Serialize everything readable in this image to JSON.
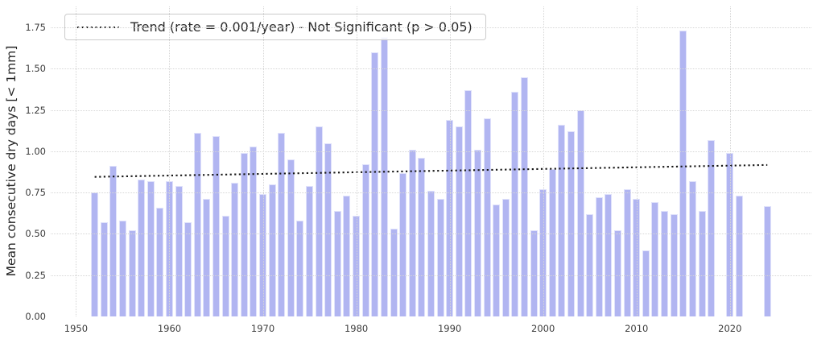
{
  "chart_data": {
    "type": "bar",
    "title": "",
    "xlabel": "",
    "ylabel": "Mean consecutive dry days [< 1mm]",
    "ylim": [
      0,
      1.82
    ],
    "yticks": [
      0,
      0.25,
      0.5,
      0.75,
      1.0,
      1.25,
      1.5,
      1.75
    ],
    "xticks": [
      1950,
      1960,
      1970,
      1980,
      1990,
      2000,
      2010,
      2020
    ],
    "grid": true,
    "legend_position": "upper-left",
    "years": [
      1952,
      1953,
      1954,
      1955,
      1956,
      1957,
      1958,
      1959,
      1960,
      1961,
      1962,
      1963,
      1964,
      1965,
      1966,
      1967,
      1968,
      1969,
      1970,
      1971,
      1972,
      1973,
      1974,
      1975,
      1976,
      1977,
      1978,
      1979,
      1980,
      1981,
      1982,
      1983,
      1984,
      1985,
      1986,
      1987,
      1988,
      1989,
      1990,
      1991,
      1992,
      1993,
      1994,
      1995,
      1996,
      1997,
      1998,
      1999,
      2000,
      2001,
      2002,
      2003,
      2004,
      2005,
      2006,
      2007,
      2008,
      2009,
      2010,
      2011,
      2012,
      2013,
      2014,
      2015,
      2016,
      2017,
      2018,
      2019,
      2020,
      2021,
      2022,
      2023,
      2024
    ],
    "values": [
      0.75,
      0.57,
      0.91,
      0.58,
      0.52,
      0.83,
      0.82,
      0.66,
      0.82,
      0.79,
      0.57,
      1.11,
      0.71,
      1.09,
      0.61,
      0.81,
      0.99,
      1.03,
      0.74,
      0.8,
      1.11,
      0.95,
      0.58,
      0.79,
      1.15,
      1.05,
      0.64,
      0.73,
      0.61,
      0.92,
      1.6,
      1.69,
      0.53,
      0.87,
      1.01,
      0.96,
      0.76,
      0.71,
      1.19,
      1.15,
      1.37,
      1.01,
      1.2,
      0.68,
      0.71,
      1.36,
      1.45,
      0.52,
      0.77,
      0.89,
      1.16,
      1.12,
      1.25,
      0.62,
      0.72,
      0.74,
      0.52,
      0.77,
      0.71,
      0.4,
      0.69,
      0.64,
      0.62,
      1.73,
      0.82,
      0.64,
      1.07,
      null,
      0.99,
      0.73,
      null,
      null,
      0.67
    ],
    "trend": {
      "label": "Trend (rate = 0.001/year) - Not Significant (p > 0.05)",
      "rate_per_year": 0.001,
      "significant": false,
      "p_text": "p > 0.05",
      "start": {
        "year": 1952,
        "value": 0.845
      },
      "end": {
        "year": 2024,
        "value": 0.917
      },
      "style": "dotted"
    },
    "colors": {
      "bar": "#b1b5f1",
      "bar_edge": "#e0e2fb",
      "trend": "#161616",
      "grid": "#d6d6d6",
      "tick_text": "#3c3c3c",
      "label_text": "#262626"
    }
  }
}
